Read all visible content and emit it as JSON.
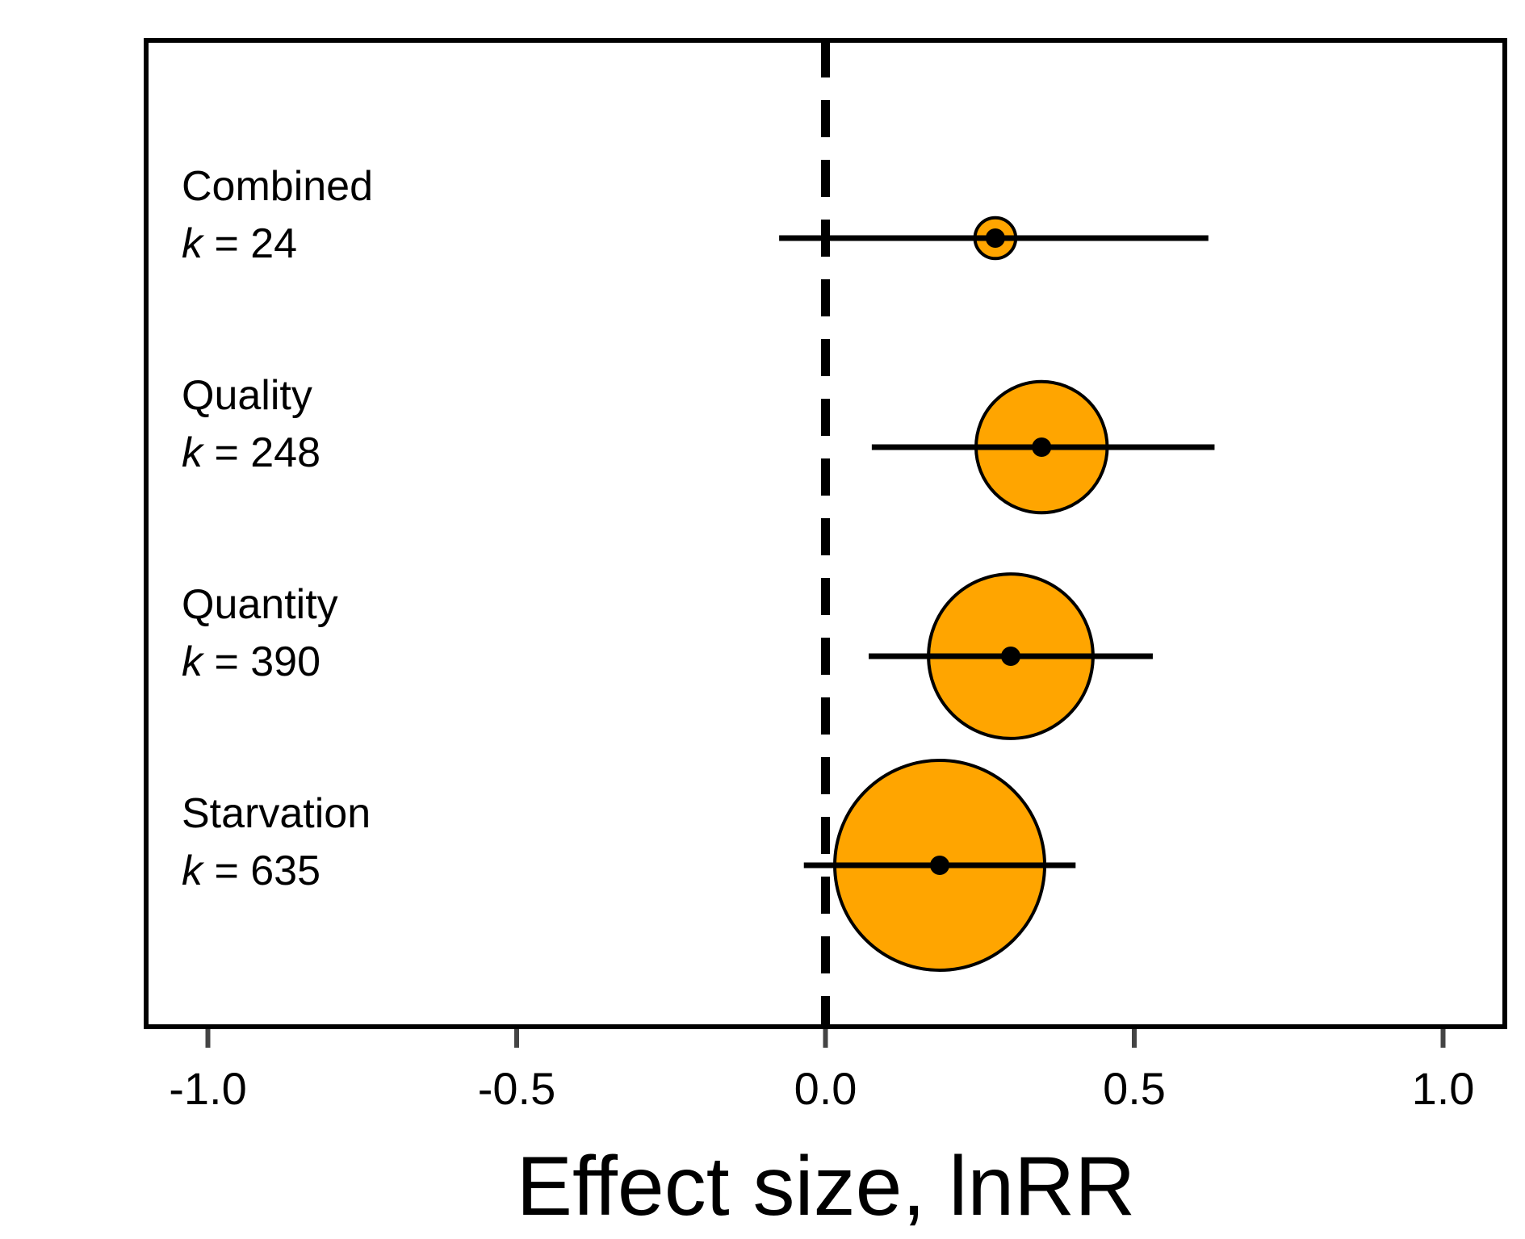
{
  "chart_data": {
    "type": "scatter",
    "subtype": "forest-plot",
    "title": "",
    "xlabel": "Effect size, lnRR",
    "ylabel": "",
    "xlim": [
      -1.1,
      1.1
    ],
    "xticks": [
      -1.0,
      -0.5,
      0.0,
      0.5,
      1.0
    ],
    "xtick_labels": [
      "-1.0",
      "-0.5",
      "0.0",
      "0.5",
      "1.0"
    ],
    "reference_line": 0.0,
    "grid": false,
    "k_prefix": "k",
    "k_equals": " = ",
    "marker_color": "#FFA500",
    "groups": [
      {
        "name": "Combined",
        "k": 24,
        "estimate": 0.275,
        "ci": [
          -0.075,
          0.62
        ]
      },
      {
        "name": "Quality",
        "k": 248,
        "estimate": 0.35,
        "ci": [
          0.075,
          0.63
        ]
      },
      {
        "name": "Quantity",
        "k": 390,
        "estimate": 0.3,
        "ci": [
          0.07,
          0.53
        ]
      },
      {
        "name": "Starvation",
        "k": 635,
        "estimate": 0.185,
        "ci": [
          -0.035,
          0.405
        ]
      }
    ]
  }
}
